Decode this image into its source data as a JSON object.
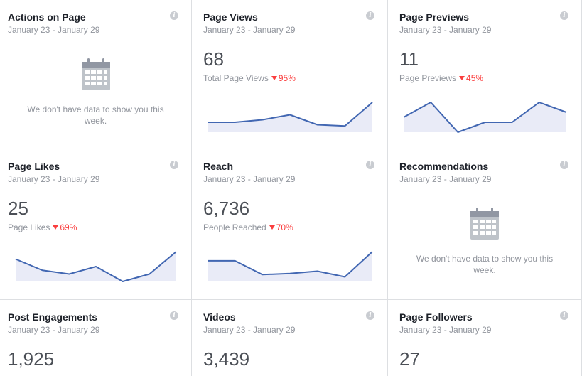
{
  "cards": [
    {
      "title": "Actions on Page",
      "range": "January 23 - January 29",
      "empty_message": "We don't have data to show you this week."
    },
    {
      "title": "Page Views",
      "range": "January 23 - January 29",
      "value": "68",
      "sub_label": "Total Page Views",
      "delta": "95%",
      "trend": [
        4,
        4,
        5,
        7,
        3,
        2.5,
        12
      ]
    },
    {
      "title": "Page Previews",
      "range": "January 23 - January 29",
      "value": "11",
      "sub_label": "Page Previews",
      "delta": "45%",
      "trend": [
        3,
        6,
        0,
        2,
        2,
        6,
        4
      ]
    },
    {
      "title": "Page Likes",
      "range": "January 23 - January 29",
      "value": "25",
      "sub_label": "Page Likes",
      "delta": "69%",
      "trend": [
        6,
        3,
        2,
        4,
        0,
        2,
        8
      ]
    },
    {
      "title": "Reach",
      "range": "January 23 - January 29",
      "value": "6,736",
      "sub_label": "People Reached",
      "delta": "70%",
      "trend": [
        9,
        9,
        3,
        3.5,
        4.5,
        2,
        13
      ]
    },
    {
      "title": "Recommendations",
      "range": "January 23 - January 29",
      "empty_message": "We don't have data to show you this week."
    },
    {
      "title": "Post Engagements",
      "range": "January 23 - January 29",
      "value": "1,925"
    },
    {
      "title": "Videos",
      "range": "January 23 - January 29",
      "value": "3,439"
    },
    {
      "title": "Page Followers",
      "range": "January 23 - January 29",
      "value": "27"
    }
  ],
  "colors": {
    "line": "#4267b2",
    "fill": "#e9ebf7",
    "delta": "#fa3e3e"
  }
}
